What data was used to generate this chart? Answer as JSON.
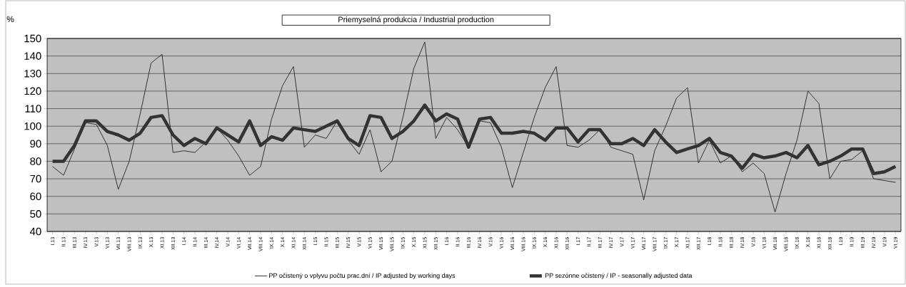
{
  "chart_data": {
    "type": "line",
    "title": "Priemyselná produkcia / Industrial production",
    "ylabel": "%",
    "categories": [
      "I.13",
      "II.13",
      "III.13",
      "IV.13",
      "V.13",
      "VI.13",
      "VII.13",
      "VIII.13",
      "IX.13",
      "X.13",
      "XI.13",
      "XII.13",
      "I.14",
      "II.14",
      "III.14",
      "IV.14",
      "V.14",
      "VI.14",
      "VII.14",
      "VIII.14",
      "IX.14",
      "X.14",
      "XI.14",
      "XII.14",
      "I.15",
      "II.15",
      "III.15",
      "IV.15",
      "V.15",
      "VI.15",
      "VII.15",
      "VIII.15",
      "IX.15",
      "X.15",
      "XI.15",
      "XII.15",
      "I.16",
      "II.16",
      "III.16",
      "IV.16",
      "V.16",
      "VI.16",
      "VII.16",
      "VIII.16",
      "IX.16",
      "X.16",
      "XI.16",
      "XII.16",
      "I.17",
      "II.17",
      "III.17",
      "IV.17",
      "V.17",
      "VI.17",
      "VII.17",
      "VIII.17",
      "IX.17",
      "X.17",
      "XI.17",
      "XII.17",
      "I.18",
      "II.18",
      "III.18",
      "IV.18",
      "V.18",
      "VI.18",
      "VII.18",
      "VIII.18",
      "IX.18",
      "X.18",
      "XI.18",
      "XII.18",
      "I.19",
      "II.19",
      "III.19",
      "IV.19",
      "V.19",
      "VI.19"
    ],
    "ylim": [
      40,
      150
    ],
    "yticks": [
      40,
      50,
      60,
      70,
      80,
      90,
      100,
      110,
      120,
      130,
      140,
      150
    ],
    "grid": "y",
    "legend": "bottom",
    "marker": "none",
    "line_style": "solid",
    "series": [
      {
        "name": "PP očistený o vplyvu počtu prac.dní / IP adjusted by working days",
        "color": "#333333",
        "values": [
          77,
          72,
          87,
          102,
          101,
          89,
          64,
          80,
          107,
          136,
          141,
          85,
          86,
          85,
          91,
          99,
          92,
          83,
          72,
          77,
          104,
          123,
          134,
          88,
          95,
          93,
          103,
          92,
          84,
          98,
          74,
          80,
          105,
          133,
          148,
          93,
          105,
          98,
          88,
          103,
          102,
          88,
          65,
          85,
          105,
          122,
          134,
          89,
          88,
          92,
          98,
          88,
          86,
          84,
          58,
          86,
          100,
          116,
          122,
          79,
          92,
          79,
          83,
          74,
          79,
          73,
          51,
          73,
          92,
          120,
          113,
          70,
          80,
          81,
          86,
          70,
          69,
          68
        ]
      },
      {
        "name": "PP sezónne očistený / IP - seasonally adjusted data",
        "color": "#333333",
        "values": [
          80,
          80,
          89,
          103,
          103,
          97,
          95,
          92,
          96,
          105,
          106,
          95,
          89,
          93,
          90,
          99,
          95,
          91,
          103,
          89,
          94,
          92,
          99,
          98,
          97,
          100,
          103,
          93,
          89,
          106,
          105,
          93,
          97,
          103,
          112,
          103,
          107,
          104,
          88,
          104,
          105,
          96,
          96,
          97,
          96,
          92,
          99,
          99,
          91,
          98,
          98,
          90,
          90,
          93,
          89,
          98,
          91,
          85,
          87,
          89,
          93,
          85,
          83,
          76,
          84,
          82,
          83,
          85,
          82,
          89,
          78,
          80,
          83,
          87,
          87,
          73,
          74,
          77
        ]
      }
    ]
  }
}
